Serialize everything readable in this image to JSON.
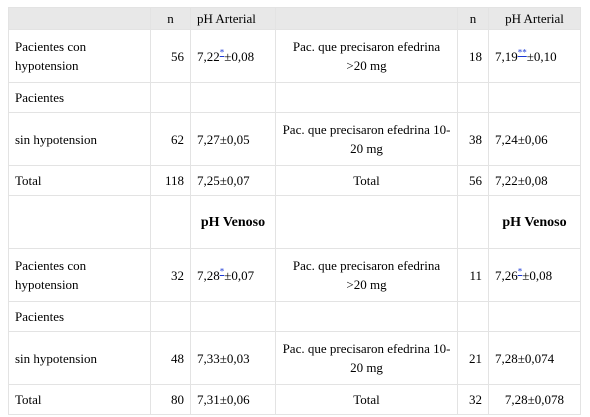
{
  "header": {
    "c1": "",
    "c2": "n",
    "c3": "pH Arterial",
    "c4": "",
    "c5": "n",
    "c6": "pH Arterial"
  },
  "rows": [
    {
      "c1": "Pacientes con hypotension",
      "c2": "56",
      "c3_pre": "7,22",
      "c3_mark": "*",
      "c3_post": "±0,08",
      "c4": "Pac. que precisaron efedrina >20 mg",
      "c5": "18",
      "c6_pre": "7,19",
      "c6_mark": "**",
      "c6_post": "±0,10"
    },
    {
      "c1": "Pacientes",
      "c2": "",
      "c3": "",
      "c4": "",
      "c5": "",
      "c6": ""
    },
    {
      "c1": "sin hypotension",
      "c2": "62",
      "c3": "7,27±0,05",
      "c4": "Pac. que precisaron efedrina 10-20 mg",
      "c5": "38",
      "c6": "7,24±0,06"
    },
    {
      "c1": "Total",
      "c2": "118",
      "c3": "7,25±0,07",
      "c4": "Total",
      "c5": "56",
      "c6": "7,22±0,08"
    },
    {
      "c1": "",
      "c2": "",
      "c3": "pH Venoso",
      "c4": "",
      "c5": "",
      "c6": "pH Venoso"
    },
    {
      "c1": "Pacientes con hypotension",
      "c2": "32",
      "c3_pre": "7,28",
      "c3_mark": "*",
      "c3_post": "±0,07",
      "c4": "Pac. que precisaron efedrina >20 mg",
      "c5": "11",
      "c6_pre": "7,26",
      "c6_mark": "*",
      "c6_post": "±0,08"
    },
    {
      "c1": "Pacientes",
      "c2": "",
      "c3": "",
      "c4": "",
      "c5": "",
      "c6": ""
    },
    {
      "c1": "sin hypotension",
      "c2": "48",
      "c3": "7,33±0,03",
      "c4": "Pac. que precisaron efedrina 10-20 mg",
      "c5": "21",
      "c6": "7,28±0,074"
    },
    {
      "c1": "Total",
      "c2": "80",
      "c3": "7,31±0,06",
      "c4": "Total",
      "c5": "32",
      "c6": "7,28±0,078"
    }
  ]
}
